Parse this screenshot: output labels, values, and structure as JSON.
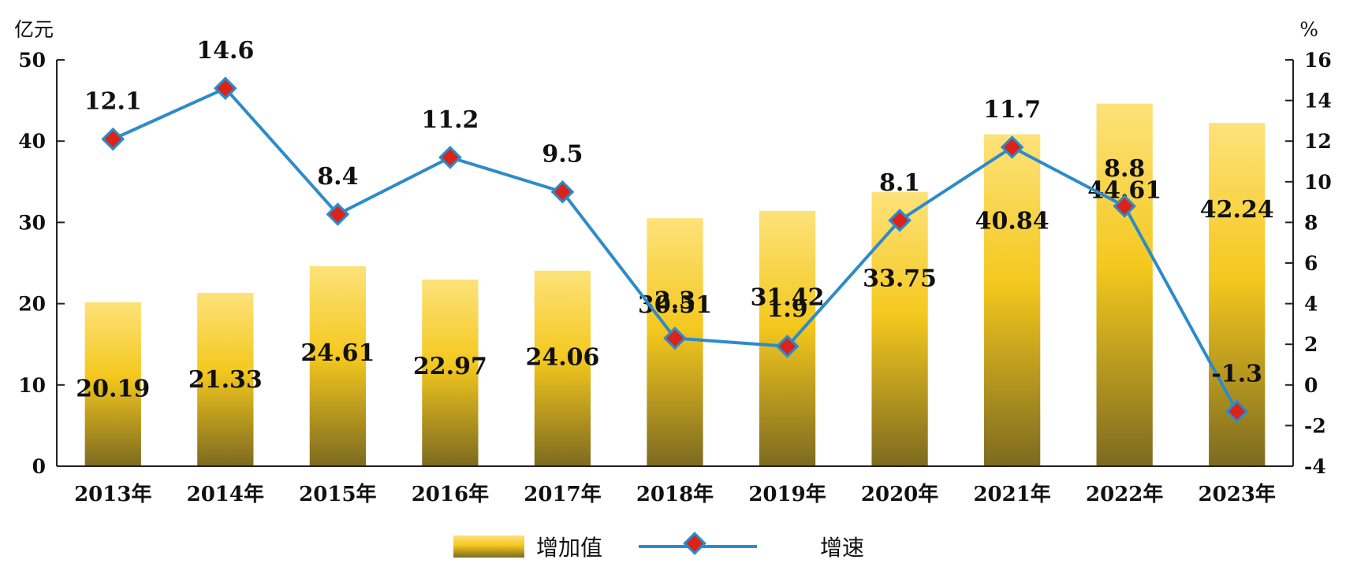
{
  "chart_data": {
    "type": "bar",
    "categories": [
      "2013年",
      "2014年",
      "2015年",
      "2016年",
      "2017年",
      "2018年",
      "2019年",
      "2020年",
      "2021年",
      "2022年",
      "2023年"
    ],
    "series": [
      {
        "name": "增加值",
        "type": "bar",
        "axis": "left",
        "values": [
          20.19,
          21.33,
          24.61,
          22.97,
          24.06,
          30.51,
          31.42,
          33.75,
          40.84,
          44.61,
          42.24
        ],
        "labels": [
          "20.19",
          "21.33",
          "24.61",
          "22.97",
          "24.06",
          "30.51",
          "31.42",
          "33.75",
          "40.84",
          "44.61",
          "42.24"
        ]
      },
      {
        "name": "增速",
        "type": "line",
        "axis": "right",
        "values": [
          12.1,
          14.6,
          8.4,
          11.2,
          9.5,
          2.3,
          1.9,
          8.1,
          11.7,
          8.8,
          -1.3
        ],
        "labels": [
          "12.1",
          "14.6",
          "8.4",
          "11.2",
          "9.5",
          "2.3",
          "1.9",
          "8.1",
          "11.7",
          "8.8",
          "-1.3"
        ]
      }
    ],
    "y_left": {
      "unit": "亿元",
      "range": [
        0,
        50
      ],
      "ticks": [
        0,
        10,
        20,
        30,
        40,
        50
      ],
      "tick_labels": [
        "0",
        "10",
        "20",
        "30",
        "40",
        "50"
      ]
    },
    "y_right": {
      "unit": "%",
      "range": [
        -4,
        16
      ],
      "ticks": [
        -4,
        -2,
        0,
        2,
        4,
        6,
        8,
        10,
        12,
        14,
        16
      ],
      "tick_labels": [
        "-4",
        "-2",
        "0",
        "2",
        "4",
        "6",
        "8",
        "10",
        "12",
        "14",
        "16"
      ]
    },
    "grid": false,
    "legend": {
      "position": "bottom-center",
      "items": [
        "增加值",
        "增速"
      ]
    },
    "colors": {
      "bar_top": "#fde27a",
      "bar_mid": "#f4c81e",
      "bar_bottom": "#7d6a20",
      "line": "#2e8bc9",
      "marker_fill": "#d9231b",
      "marker_edge": "#2e8bc9"
    }
  }
}
